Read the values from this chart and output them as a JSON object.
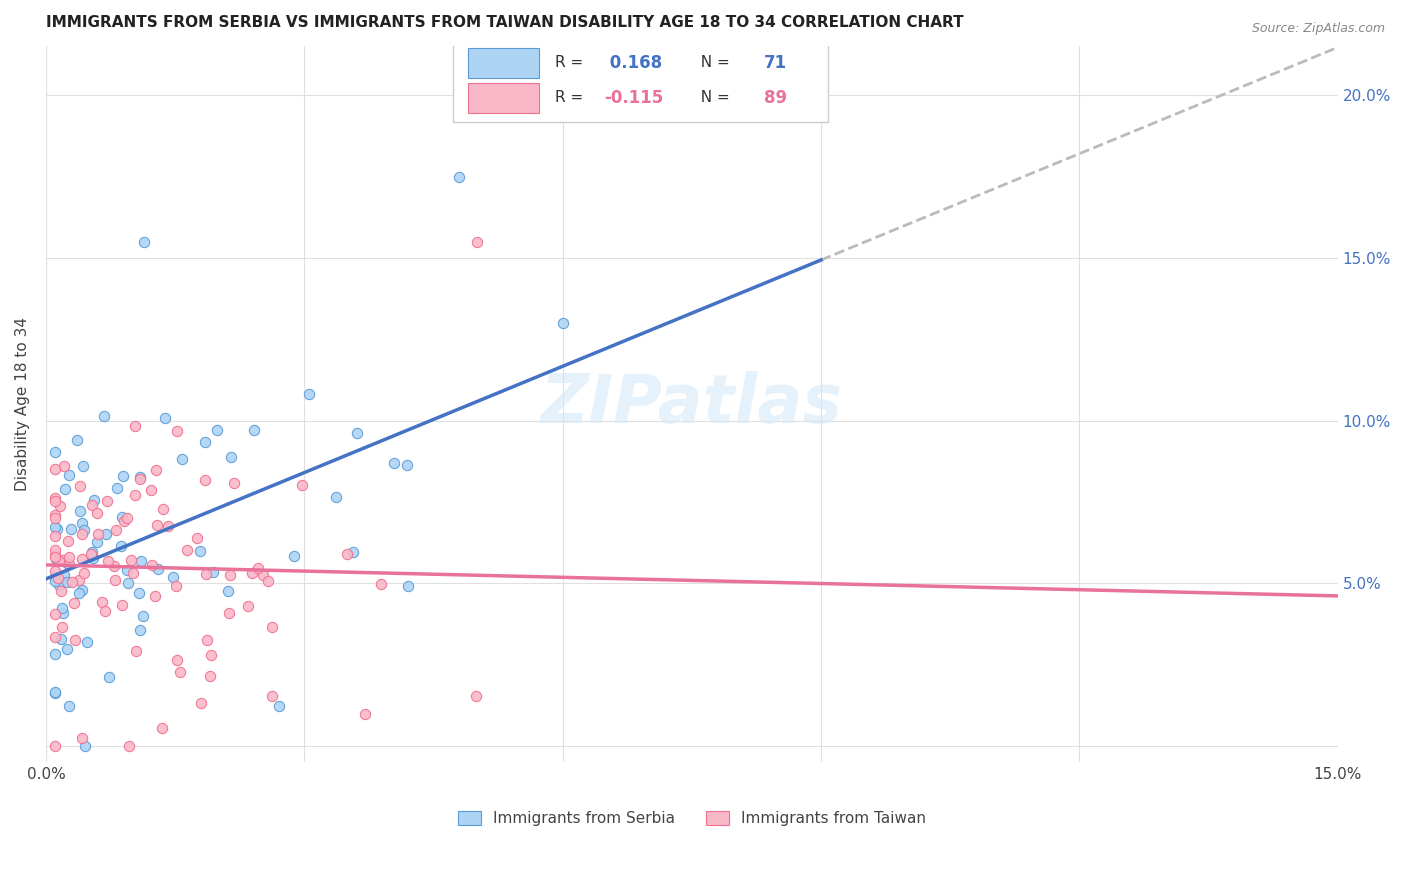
{
  "title": "IMMIGRANTS FROM SERBIA VS IMMIGRANTS FROM TAIWAN DISABILITY AGE 18 TO 34 CORRELATION CHART",
  "source": "Source: ZipAtlas.com",
  "ylabel": "Disability Age 18 to 34",
  "xlim": [
    0.0,
    0.15
  ],
  "ylim": [
    -0.005,
    0.215
  ],
  "serbia_R": 0.168,
  "serbia_N": 71,
  "taiwan_R": -0.115,
  "taiwan_N": 89,
  "serbia_color": "#ADD4F5",
  "taiwan_color": "#F9B8C8",
  "serbia_edge_color": "#5B9BD5",
  "taiwan_edge_color": "#F07090",
  "serbia_line_color": "#4472C4",
  "taiwan_line_color": "#E8729A",
  "dash_color": "#BBBBBB",
  "watermark": "ZIPatlas",
  "background_color": "#FFFFFF",
  "grid_color": "#DDDDDD",
  "right_axis_color": "#4472C4"
}
